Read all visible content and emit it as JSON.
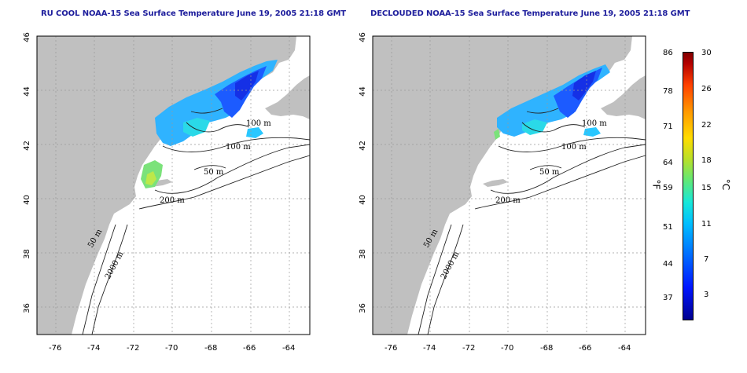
{
  "panels": [
    {
      "title": "RU COOL NOAA-15 Sea Surface Temperature June 19, 2005 21:18 GMT"
    },
    {
      "title": "DECLOUDED NOAA-15 Sea Surface Temperature June 19, 2005 21:18 GMT"
    }
  ],
  "axes": {
    "lon_ticks": [
      "-76",
      "-74",
      "-72",
      "-70",
      "-68",
      "-66",
      "-64"
    ],
    "lat_ticks": [
      "46",
      "44",
      "42",
      "40",
      "38",
      "36"
    ],
    "lon_range": [
      -77,
      -63
    ],
    "lat_range": [
      35,
      46
    ]
  },
  "contour_labels": [
    "100 m",
    "100 m",
    "50 m",
    "200 m",
    "50 m",
    "2000 m"
  ],
  "colorbar": {
    "fahrenheit_ticks": [
      "86",
      "78",
      "71",
      "64",
      "59",
      "51",
      "44",
      "37"
    ],
    "celsius_ticks": [
      "30",
      "26",
      "22",
      "18",
      "15",
      "11",
      "7",
      "3"
    ],
    "unit_f": "°F",
    "unit_c": "°C",
    "range_c": [
      0,
      30
    ]
  },
  "colors": {
    "land": "#c0c0c0",
    "title": "#1d1d9c",
    "grid": "#999999"
  }
}
